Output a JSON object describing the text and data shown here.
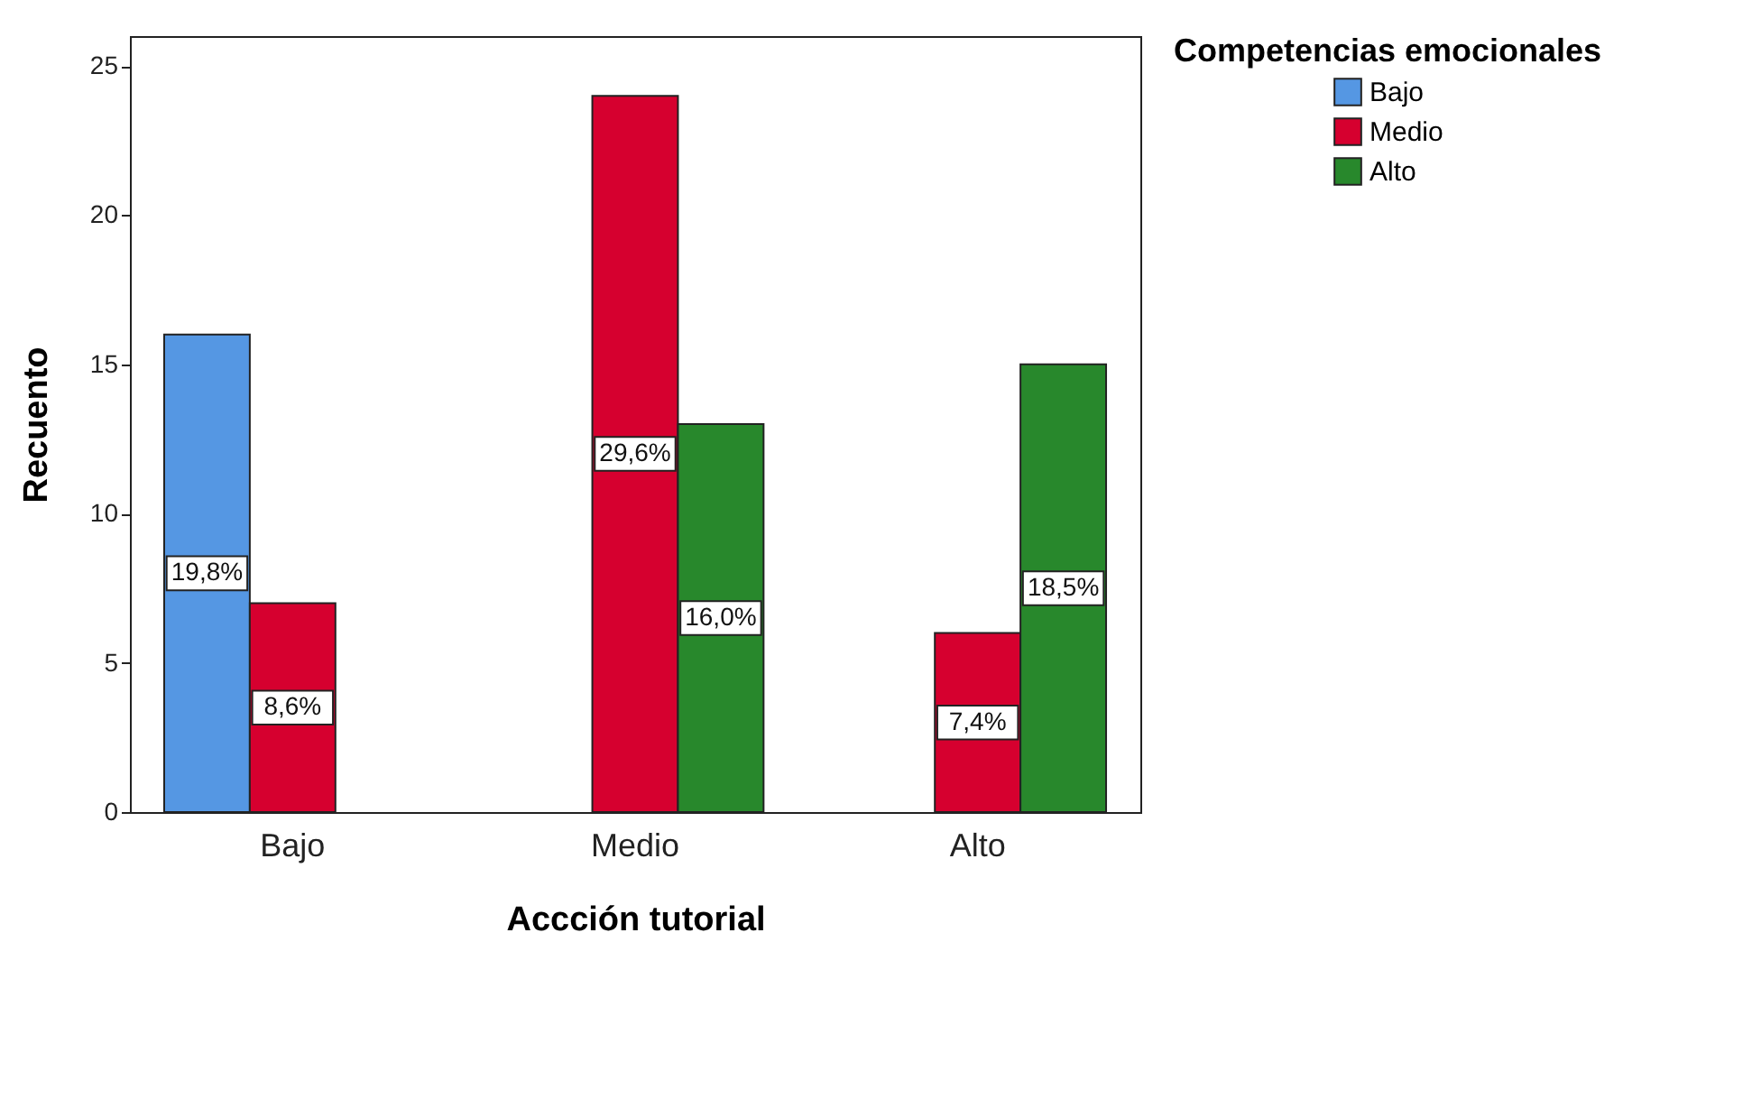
{
  "chart_data": {
    "type": "bar",
    "xlabel": "Accción tutorial",
    "ylabel": "Recuento",
    "legend_title": "Competencias emocionales",
    "categories": [
      "Bajo",
      "Medio",
      "Alto"
    ],
    "series": [
      {
        "name": "Bajo",
        "color": "#5597e3",
        "values": [
          16,
          null,
          null
        ]
      },
      {
        "name": "Medio",
        "color": "#d6002f",
        "values": [
          7,
          24,
          6
        ]
      },
      {
        "name": "Alto",
        "color": "#28882c",
        "values": [
          null,
          13,
          15
        ]
      }
    ],
    "annotations": [
      "19,8%",
      "8,6%",
      "29,6%",
      "16,0%",
      "7,4%",
      "18,5%"
    ],
    "ylim": [
      0,
      26
    ],
    "yticks": [
      0,
      5,
      10,
      15,
      20,
      25
    ],
    "grid": false,
    "legend": "top right"
  }
}
